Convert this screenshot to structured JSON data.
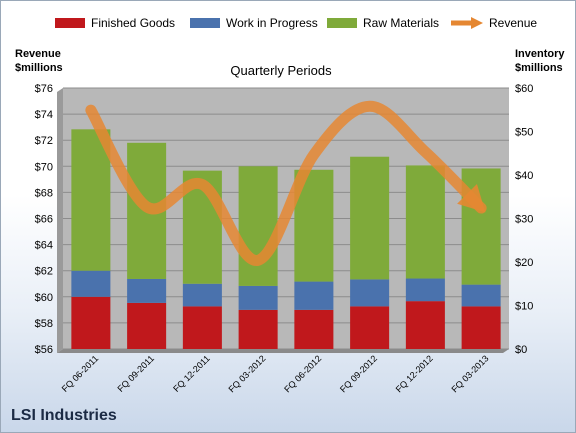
{
  "legend": {
    "finished": "Finished Goods",
    "wip": "Work in Progress",
    "raw": "Raw Materials",
    "revenue": "Revenue"
  },
  "left_axis_title": [
    "Revenue",
    "$millions"
  ],
  "right_axis_title": [
    "Inventory",
    "$millions"
  ],
  "subtitle": "Quarterly Periods",
  "company": "LSI Industries",
  "colors": {
    "finished": "#c0181c",
    "wip": "#4a72ad",
    "raw": "#7faa3a",
    "revenue": "#e58732",
    "plot_bg": "#b8b8b8",
    "gridline": "#8c8c8c"
  },
  "chart_data": {
    "type": "bar",
    "stacked": true,
    "categories": [
      "FQ 06-2011",
      "FQ 09-2011",
      "FQ 12-2011",
      "FQ 03-2012",
      "FQ 06-2012",
      "FQ 09-2012",
      "FQ 12-2012",
      "FQ 03-2013"
    ],
    "series": [
      {
        "name": "Finished Goods",
        "axis": "right",
        "values": [
          12.0,
          10.6,
          9.8,
          9.0,
          9.0,
          9.8,
          11.0,
          9.8
        ]
      },
      {
        "name": "Work in Progress",
        "axis": "right",
        "values": [
          6.0,
          5.5,
          5.2,
          5.5,
          6.5,
          6.2,
          5.2,
          5.0
        ]
      },
      {
        "name": "Raw Materials",
        "axis": "right",
        "values": [
          32.5,
          31.3,
          26.0,
          27.5,
          25.7,
          28.2,
          26.0,
          26.7
        ]
      },
      {
        "name": "Revenue",
        "type": "line",
        "axis": "left",
        "values": [
          74.3,
          66.9,
          68.6,
          62.8,
          70.9,
          74.6,
          71.1,
          66.8
        ]
      }
    ],
    "left_axis": {
      "label": "Revenue $millions",
      "ylim": [
        56,
        76
      ],
      "ticks": [
        "$56",
        "$58",
        "$60",
        "$62",
        "$64",
        "$66",
        "$68",
        "$70",
        "$72",
        "$74",
        "$76"
      ]
    },
    "right_axis": {
      "label": "Inventory $millions",
      "ylim": [
        0,
        60
      ],
      "ticks": [
        "$0",
        "$10",
        "$20",
        "$30",
        "$40",
        "$50",
        "$60"
      ]
    },
    "grid": true,
    "legend_position": "top"
  }
}
